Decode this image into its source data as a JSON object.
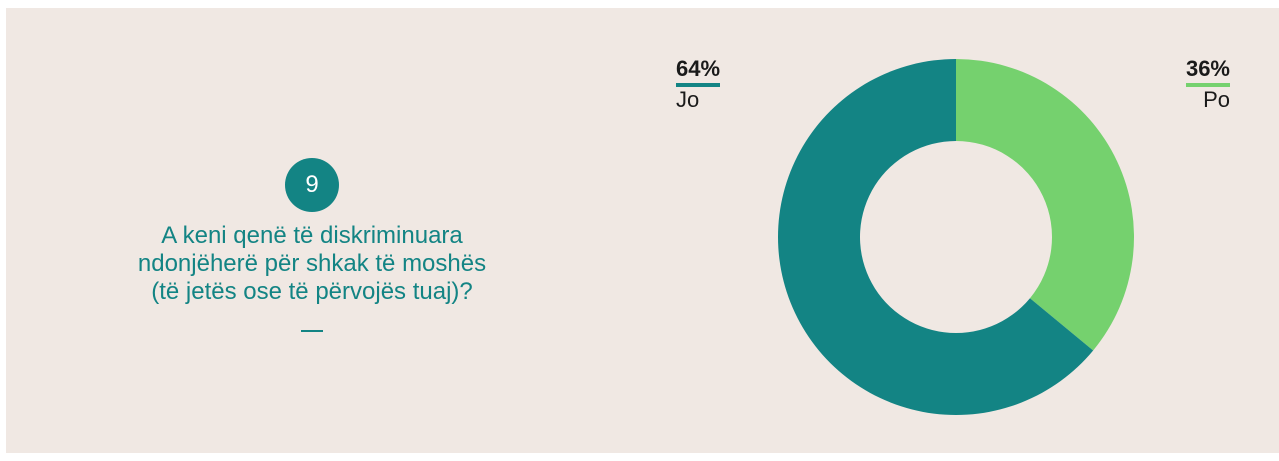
{
  "question": {
    "number": "9",
    "lines": [
      "A keni qenë të diskriminuara",
      "ndonjëherë për shkak të moshës",
      "(të jetës ose të përvojës tuaj)?"
    ]
  },
  "chart_data": {
    "type": "pie",
    "donut": true,
    "categories": [
      "Po",
      "Jo"
    ],
    "values": [
      36,
      64
    ],
    "labels": [
      "36%",
      "64%"
    ],
    "colors": [
      "#75d16e",
      "#138484"
    ]
  },
  "colors": {
    "background": "#f0e8e3",
    "accent": "#138484"
  }
}
